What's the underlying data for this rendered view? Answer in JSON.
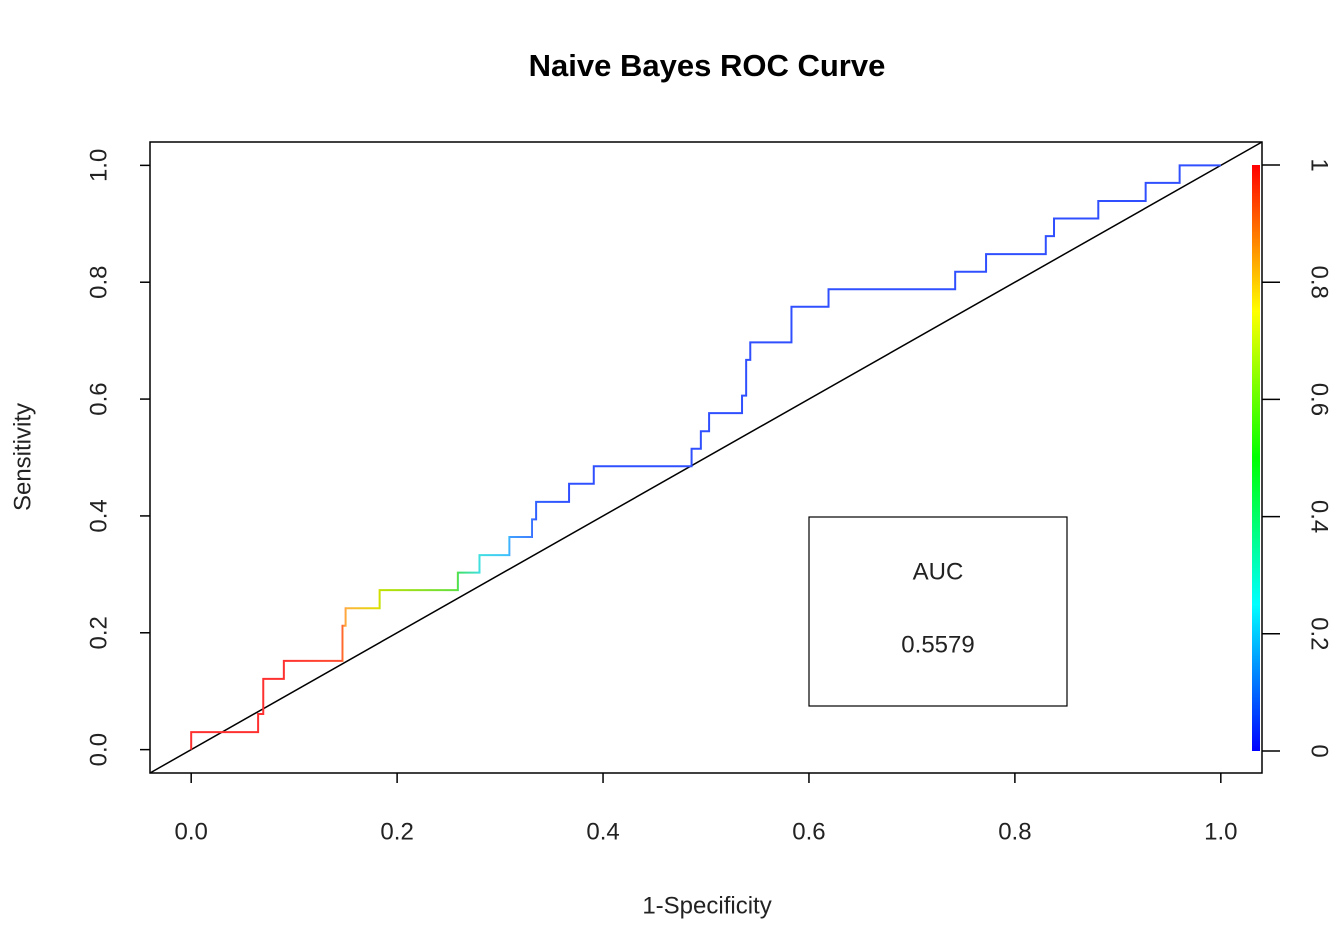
{
  "chart_data": {
    "type": "roc",
    "title": "Naive Bayes ROC Curve",
    "x_label": "1-Specificity",
    "y_label": "Sensitivity",
    "xlim": [
      -0.04,
      1.04
    ],
    "ylim": [
      -0.04,
      1.04
    ],
    "xticks": [
      {
        "value": 0,
        "label": "0.0"
      },
      {
        "value": 0.2,
        "label": "0.2"
      },
      {
        "value": 0.4,
        "label": "0.4"
      },
      {
        "value": 0.6,
        "label": "0.6"
      },
      {
        "value": 0.8,
        "label": "0.8"
      },
      {
        "value": 1,
        "label": "1.0"
      }
    ],
    "yticks": [
      {
        "value": 0,
        "label": "0.0"
      },
      {
        "value": 0.2,
        "label": "0.2"
      },
      {
        "value": 0.4,
        "label": "0.4"
      },
      {
        "value": 0.6,
        "label": "0.6"
      },
      {
        "value": 0.8,
        "label": "0.8"
      },
      {
        "value": 1,
        "label": "1.0"
      }
    ],
    "series": [
      {
        "x": [
          0,
          0,
          0.065,
          0.065,
          0.07,
          0.07,
          0.09,
          0.09,
          0.147,
          0.147,
          0.15,
          0.15,
          0.183,
          0.183,
          0.259,
          0.259,
          0.28,
          0.28,
          0.309,
          0.309,
          0.331,
          0.331,
          0.335,
          0.335,
          0.367,
          0.367,
          0.391,
          0.391,
          0.486,
          0.486,
          0.495,
          0.495,
          0.503,
          0.503,
          0.535,
          0.535,
          0.539,
          0.539,
          0.543,
          0.543,
          0.583,
          0.583,
          0.619,
          0.619,
          0.742,
          0.742,
          0.772,
          0.772,
          0.83,
          0.83,
          0.838,
          0.838,
          0.881,
          0.881,
          0.927,
          0.927,
          0.96,
          0.96,
          1.0
        ],
        "y": [
          0,
          0.03,
          0.03,
          0.061,
          0.061,
          0.121,
          0.121,
          0.152,
          0.152,
          0.212,
          0.212,
          0.242,
          0.242,
          0.273,
          0.273,
          0.303,
          0.303,
          0.333,
          0.333,
          0.364,
          0.364,
          0.394,
          0.394,
          0.424,
          0.424,
          0.455,
          0.455,
          0.485,
          0.485,
          0.515,
          0.515,
          0.545,
          0.545,
          0.576,
          0.576,
          0.606,
          0.606,
          0.667,
          0.667,
          0.697,
          0.697,
          0.758,
          0.758,
          0.788,
          0.788,
          0.818,
          0.818,
          0.848,
          0.848,
          0.879,
          0.879,
          0.909,
          0.909,
          0.939,
          0.939,
          0.97,
          0.97,
          1.0,
          1.0
        ],
        "colors": [
          "#ff3030",
          "#ff3030",
          "#ff3030",
          "#ff3030",
          "#ff3030",
          "#ff3030",
          "#ff3030",
          "#ff3030",
          "#ff5030",
          "#ff8030",
          "#ffa040",
          "#ffb040",
          "#e0e000",
          "#c0e000",
          "#60e040",
          "#40e060",
          "#40e0e0",
          "#40e0e0",
          "#40c0ff",
          "#40a0ff",
          "#4080ff",
          "#4070ff",
          "#3060ff",
          "#3060ff",
          "#3050ff",
          "#3050ff",
          "#3050ff",
          "#3050ff",
          "#3050ff",
          "#3050ff",
          "#3050ff",
          "#3050ff",
          "#3050ff",
          "#3050ff",
          "#3050ff",
          "#3050ff",
          "#3050ff",
          "#3050ff",
          "#3050ff",
          "#3050ff",
          "#3050ff",
          "#3050ff",
          "#3050ff",
          "#3050ff",
          "#3050ff",
          "#3050ff",
          "#3050ff",
          "#3050ff",
          "#3050ff",
          "#3050ff",
          "#3050ff",
          "#3050ff",
          "#3050ff",
          "#3050ff",
          "#3050ff",
          "#3050ff",
          "#3050ff",
          "#3050ff",
          "#3050ff"
        ]
      }
    ],
    "diagonal_color": "#000000",
    "auc_label": "AUC",
    "auc": 0.5579,
    "colorbar": {
      "ylim": [
        0,
        1
      ],
      "yticks": [
        0,
        0.2,
        0.4,
        0.6,
        0.8,
        1
      ],
      "colors": [
        "#0000ff",
        "#00ffff",
        "#00ff00",
        "#ffff00",
        "#ff0000"
      ]
    }
  }
}
